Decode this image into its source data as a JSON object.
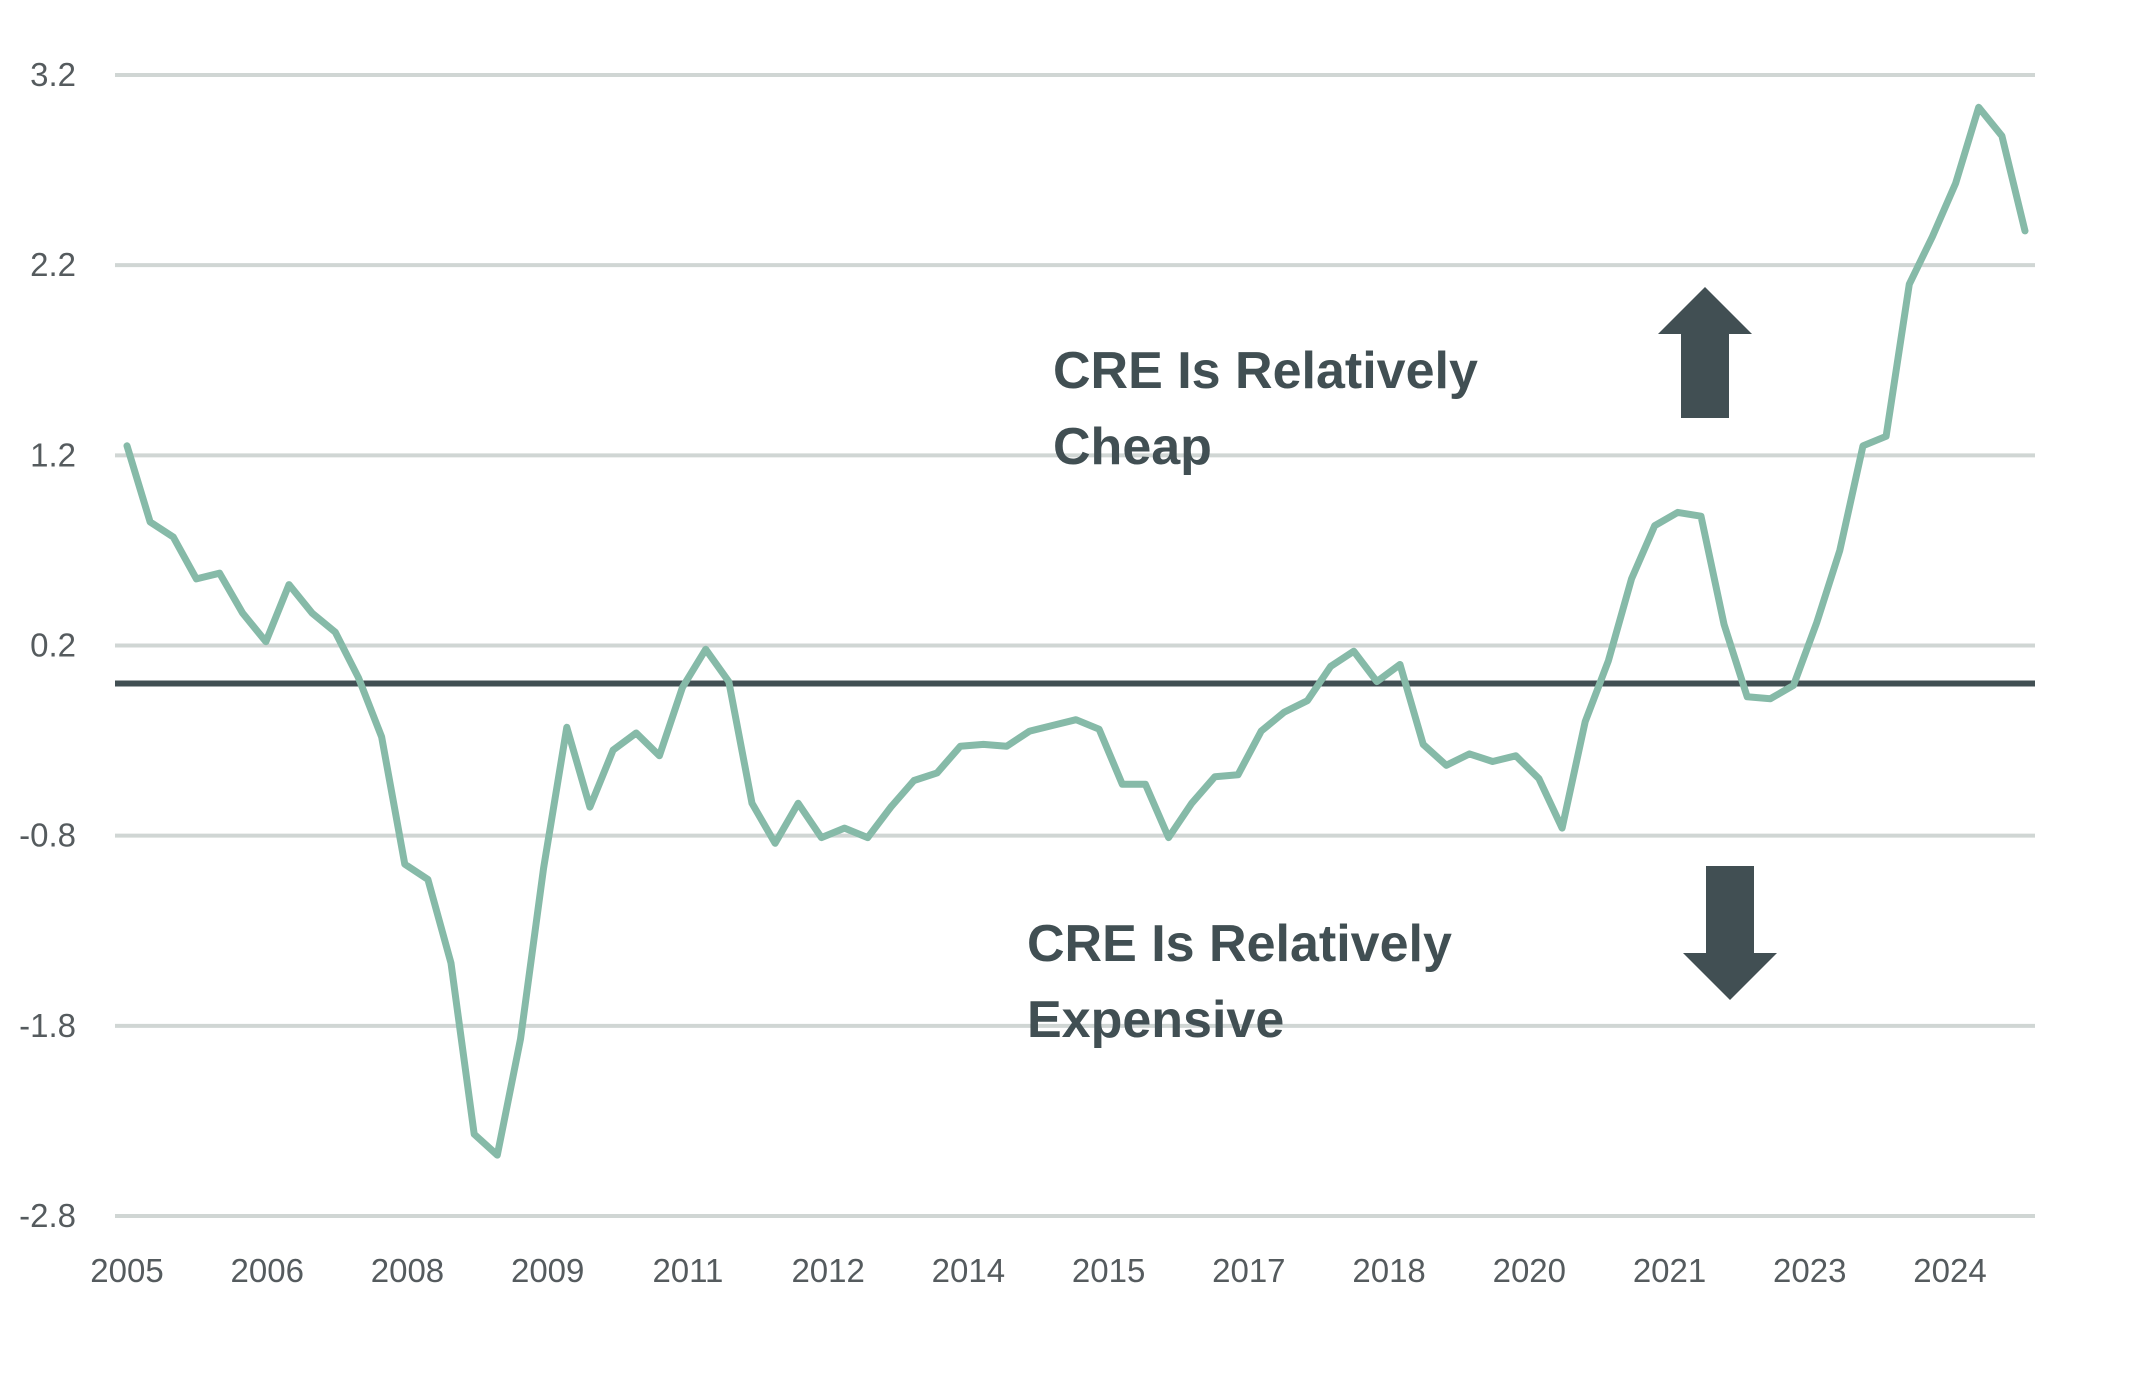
{
  "chart_data": {
    "type": "line",
    "title": "",
    "xlabel": "",
    "ylabel": "",
    "ylim": [
      -2.8,
      3.2
    ],
    "yticks": [
      "3.2",
      "2.2",
      "1.2",
      "0.2",
      "-0.8",
      "-1.8",
      "-2.8"
    ],
    "xticks": [
      "2005",
      "2006",
      "2008",
      "2009",
      "2011",
      "2012",
      "2014",
      "2015",
      "2017",
      "2018",
      "2020",
      "2021",
      "2023",
      "2024"
    ],
    "grid": "horizontal",
    "reference_line": 0,
    "colors": {
      "series": "#86baa8",
      "reference": "#414f53",
      "grid": "#d0d6d4",
      "annotation": "#414f53"
    },
    "annotations": [
      {
        "text_lines": [
          "CRE Is Relatively",
          "Cheap"
        ],
        "arrow": "up"
      },
      {
        "text_lines": [
          "CRE Is Relatively",
          "Expensive"
        ],
        "arrow": "down"
      }
    ],
    "series": [
      {
        "values": [
          1.25,
          0.85,
          0.77,
          0.55,
          0.58,
          0.37,
          0.22,
          0.52,
          0.37,
          0.27,
          0.03,
          -0.28,
          -0.95,
          -1.03,
          -1.47,
          -2.37,
          -2.48,
          -1.87,
          -0.97,
          -0.23,
          -0.65,
          -0.35,
          -0.26,
          -0.38,
          -0.02,
          0.18,
          0.01,
          -0.63,
          -0.84,
          -0.63,
          -0.81,
          -0.76,
          -0.81,
          -0.65,
          -0.51,
          -0.47,
          -0.33,
          -0.32,
          -0.33,
          -0.25,
          -0.22,
          -0.19,
          -0.24,
          -0.53,
          -0.53,
          -0.81,
          -0.63,
          -0.49,
          -0.48,
          -0.25,
          -0.15,
          -0.09,
          0.09,
          0.17,
          0.01,
          0.1,
          -0.32,
          -0.43,
          -0.37,
          -0.41,
          -0.38,
          -0.5,
          -0.76,
          -0.2,
          0.12,
          0.55,
          0.83,
          0.9,
          0.88,
          0.31,
          -0.07,
          -0.08,
          -0.01,
          0.32,
          0.7,
          1.25,
          1.3,
          2.1,
          2.35,
          2.63,
          3.03,
          2.88,
          2.38
        ]
      }
    ]
  }
}
